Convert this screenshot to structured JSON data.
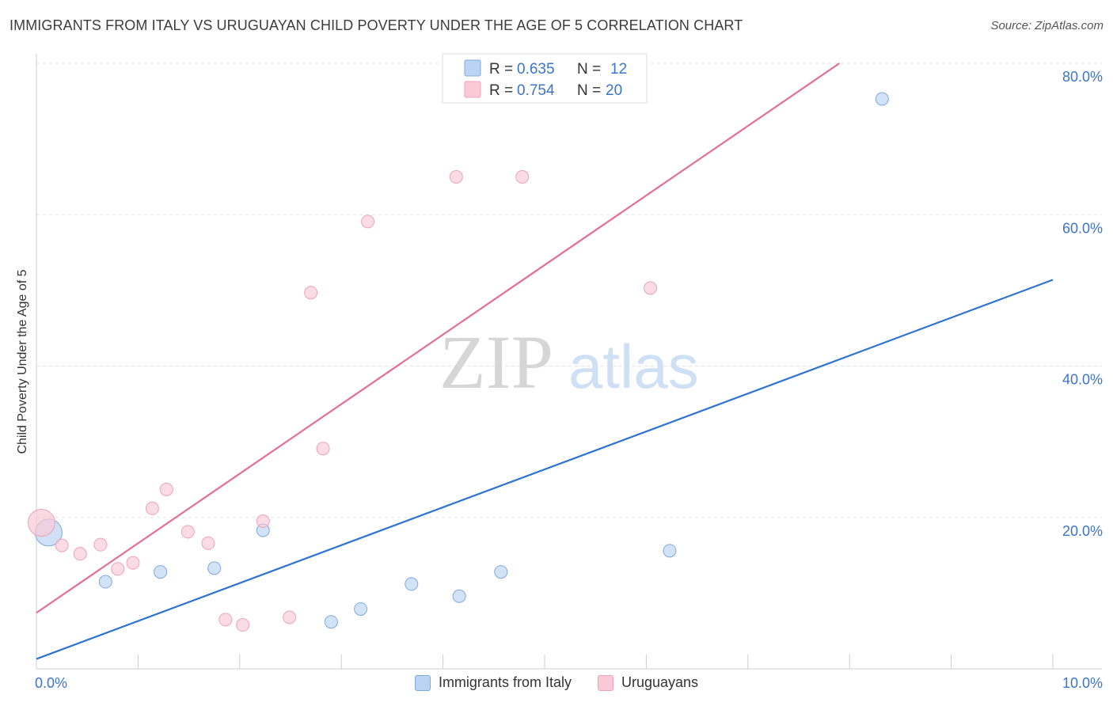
{
  "title": "IMMIGRANTS FROM ITALY VS URUGUAYAN CHILD POVERTY UNDER THE AGE OF 5 CORRELATION CHART",
  "source": "Source: ZipAtlas.com",
  "watermark": {
    "zip": "ZIP",
    "atlas": "atlas"
  },
  "colors": {
    "blue_line": "#2f73d0",
    "blue_fill": "#bcd4f3",
    "blue_stroke": "#7fa8e0",
    "pink_line": "#e46f93",
    "pink_fill": "#f9c9d7",
    "pink_stroke": "#eea2b9",
    "tick_text": "#3b74c9"
  },
  "legend_top": [
    {
      "r_label": "R =",
      "r_value": "0.635",
      "n_label": "N =",
      "n_value": "12",
      "series": "blue"
    },
    {
      "r_label": "R =",
      "r_value": "0.754",
      "n_label": "N =",
      "n_value": "20",
      "series": "pink"
    }
  ],
  "legend_bottom": [
    {
      "label": "Immigrants from Italy",
      "series": "blue"
    },
    {
      "label": "Uruguayans",
      "series": "pink"
    }
  ],
  "chart_data": {
    "type": "scatter",
    "title": "IMMIGRANTS FROM ITALY VS URUGUAYAN CHILD POVERTY UNDER THE AGE OF 5 CORRELATION CHART",
    "xlabel": "",
    "ylabel": "Child Poverty Under the Age of 5",
    "xlim": [
      0,
      10
    ],
    "ylim": [
      0,
      80
    ],
    "x_tick_labels": [
      {
        "value": 0,
        "label": "0.0%"
      },
      {
        "value": 10,
        "label": "10.0%"
      }
    ],
    "y_tick_labels": [
      {
        "value": 20,
        "label": "20.0%"
      },
      {
        "value": 40,
        "label": "40.0%"
      },
      {
        "value": 60,
        "label": "60.0%"
      },
      {
        "value": 80,
        "label": "80.0%"
      }
    ],
    "grid": true,
    "series": [
      {
        "name": "Immigrants from Italy",
        "color": "blue",
        "points": [
          {
            "x": 0.12,
            "y": 18.0,
            "big": true
          },
          {
            "x": 0.68,
            "y": 11.5
          },
          {
            "x": 1.22,
            "y": 12.8
          },
          {
            "x": 1.75,
            "y": 13.3
          },
          {
            "x": 2.23,
            "y": 18.3
          },
          {
            "x": 2.9,
            "y": 6.2
          },
          {
            "x": 3.19,
            "y": 7.9
          },
          {
            "x": 3.69,
            "y": 11.2
          },
          {
            "x": 4.16,
            "y": 9.6
          },
          {
            "x": 4.57,
            "y": 12.8
          },
          {
            "x": 6.23,
            "y": 15.6
          },
          {
            "x": 8.32,
            "y": 75.3
          }
        ],
        "trendline": {
          "x": [
            0,
            10
          ],
          "y": [
            1.3,
            51.4
          ]
        }
      },
      {
        "name": "Uruguayans",
        "color": "pink",
        "points": [
          {
            "x": 0.05,
            "y": 19.3,
            "big": true
          },
          {
            "x": 0.25,
            "y": 16.3
          },
          {
            "x": 0.43,
            "y": 15.2
          },
          {
            "x": 0.63,
            "y": 16.4
          },
          {
            "x": 0.8,
            "y": 13.2
          },
          {
            "x": 0.95,
            "y": 14.0
          },
          {
            "x": 1.14,
            "y": 21.2
          },
          {
            "x": 1.28,
            "y": 23.7
          },
          {
            "x": 1.49,
            "y": 18.1
          },
          {
            "x": 1.69,
            "y": 16.6
          },
          {
            "x": 1.86,
            "y": 6.5
          },
          {
            "x": 2.03,
            "y": 5.8
          },
          {
            "x": 2.23,
            "y": 19.5
          },
          {
            "x": 2.49,
            "y": 6.8
          },
          {
            "x": 2.7,
            "y": 49.7
          },
          {
            "x": 2.82,
            "y": 29.1
          },
          {
            "x": 3.26,
            "y": 59.1
          },
          {
            "x": 4.13,
            "y": 65.0
          },
          {
            "x": 4.78,
            "y": 65.0
          },
          {
            "x": 6.04,
            "y": 50.3
          }
        ],
        "trendline": {
          "x": [
            0,
            7.9
          ],
          "y": [
            7.4,
            80.0
          ]
        }
      }
    ]
  }
}
